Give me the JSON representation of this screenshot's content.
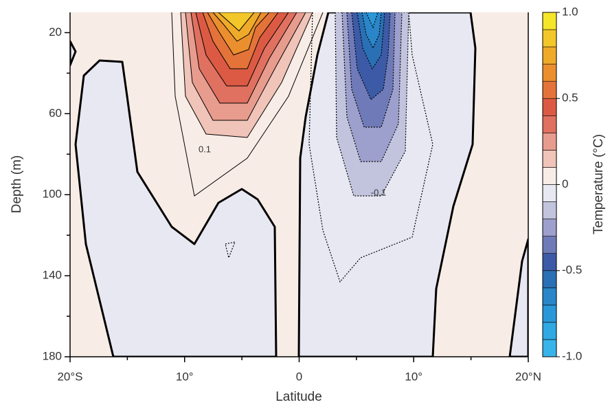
{
  "chart_data": {
    "type": "contour",
    "x_label": "Latitude",
    "y_label": "Depth (m)",
    "colorbar_label": "Temperature (°C)",
    "xlim": [
      -20,
      20
    ],
    "xticks": [
      {
        "value": -20,
        "label": "20°S"
      },
      {
        "value": -10,
        "label": "10°"
      },
      0,
      {
        "value": 10,
        "label": "10°"
      },
      {
        "value": 20,
        "label": "20°N"
      }
    ],
    "xminor": [
      -15,
      -5,
      5,
      15
    ],
    "ylim": [
      180,
      10
    ],
    "yticks": [
      20,
      60,
      100,
      140,
      180
    ],
    "yminor": [
      40,
      80,
      120,
      160
    ],
    "clim": [
      -1,
      1
    ],
    "cticks": [
      {
        "value": 1,
        "label": "1.0"
      },
      0.5,
      0,
      -0.5,
      {
        "value": -1,
        "label": "-1.0"
      }
    ],
    "levels": [
      -1.0,
      -0.9,
      -0.8,
      -0.7,
      -0.6,
      -0.5,
      -0.4,
      -0.3,
      -0.2,
      -0.1,
      0,
      0.1,
      0.2,
      0.3,
      0.4,
      0.5,
      0.6,
      0.7,
      0.8,
      0.9,
      1.0
    ],
    "colors": [
      "#38b4ea",
      "#30a8e4",
      "#2a98d8",
      "#2a86c8",
      "#2a70b4",
      "#3c5aa6",
      "#6f7bb8",
      "#9da0cc",
      "#c2c4de",
      "#e7e8f2",
      "#f8ece6",
      "#f0c4b8",
      "#e89c8e",
      "#e0705f",
      "#dc5a44",
      "#e4733a",
      "#eb8f2e",
      "#efaa2a",
      "#f3c72a",
      "#f5e62a"
    ],
    "contour_labels": [
      0.1,
      -0.1
    ]
  }
}
